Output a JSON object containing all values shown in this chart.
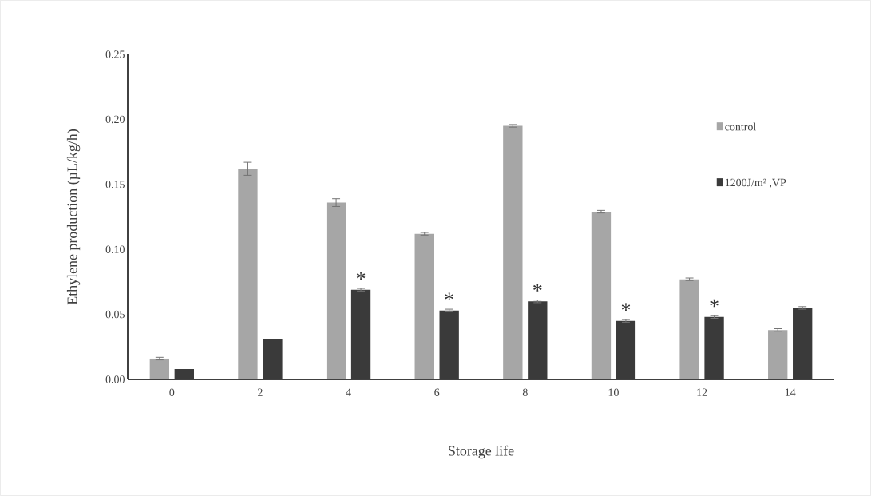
{
  "chart_data": {
    "type": "bar",
    "xlabel": "Storage life",
    "ylabel": "Ethylene production (µL/kg/h)",
    "categories": [
      "0",
      "2",
      "4",
      "6",
      "8",
      "10",
      "12",
      "14"
    ],
    "series": [
      {
        "name": "control",
        "color": "#a6a6a6",
        "values": [
          0.016,
          0.162,
          0.136,
          0.112,
          0.195,
          0.129,
          0.077,
          0.038
        ],
        "errors": [
          0.001,
          0.005,
          0.003,
          0.001,
          0.001,
          0.001,
          0.001,
          0.001
        ]
      },
      {
        "name": "1200J/m² ,VP",
        "color": "#3a3a3a",
        "values": [
          0.008,
          0.031,
          0.069,
          0.053,
          0.06,
          0.045,
          0.048,
          0.055
        ],
        "errors": [
          null,
          null,
          0.001,
          0.001,
          0.001,
          0.001,
          0.001,
          0.001
        ]
      }
    ],
    "annotations": [
      {
        "text": "*",
        "x": "4",
        "y": 0.069
      },
      {
        "text": "*",
        "x": "6",
        "y": 0.053
      },
      {
        "text": "*",
        "x": "8",
        "y": 0.06
      },
      {
        "text": "*",
        "x": "10",
        "y": 0.045
      },
      {
        "text": "*",
        "x": "12",
        "y": 0.048
      }
    ],
    "ylim": [
      0,
      0.25
    ],
    "yticks": [
      {
        "value": 0,
        "label": "0.00"
      },
      {
        "value": 0.05,
        "label": "0.05"
      },
      {
        "value": 0.1,
        "label": "0.10"
      },
      {
        "value": 0.15,
        "label": "0.15"
      },
      {
        "value": 0.2,
        "label": "0.20"
      },
      {
        "value": 0.25,
        "label": "0.25"
      }
    ],
    "grid": false,
    "legend": "top right"
  }
}
